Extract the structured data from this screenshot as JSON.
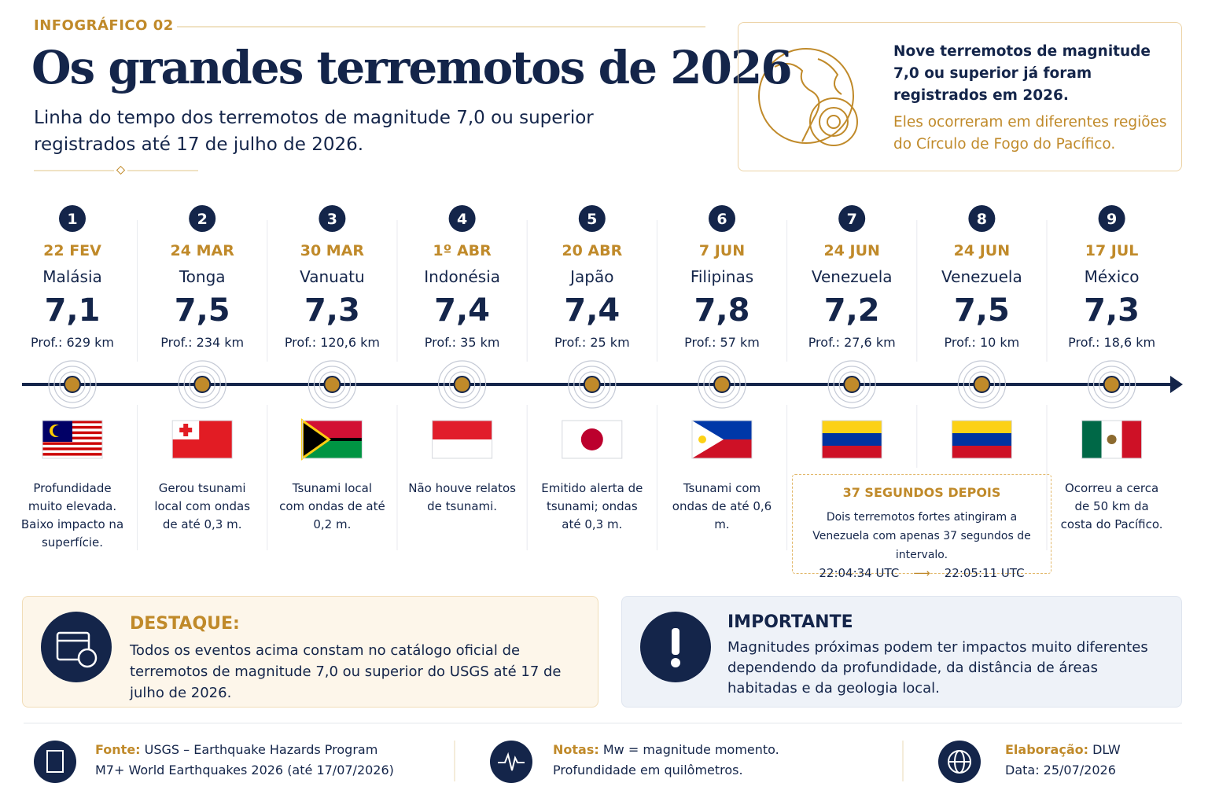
{
  "header": {
    "kicker": "INFOGRÁFICO 02",
    "title": "Os grandes terremotos de 2026",
    "subtitle": "Linha do tempo dos terremotos de magnitude 7,0 ou superior registrados até 17 de julho de 2026."
  },
  "intro": {
    "text": "Nove terremotos de magnitude 7,0 ou superior já foram registrados em 2026.",
    "note": "Eles ocorreram em diferentes regiões do Círculo de Fogo do Pacífico."
  },
  "events": [
    {
      "number": 1,
      "date": "22 FEV",
      "country": "Malásia",
      "magnitude": "7,1",
      "depth": "Prof.: 629 km",
      "note": "Profundidade muito elevada. Baixo impacto na superfície."
    },
    {
      "number": 2,
      "date": "24 MAR",
      "country": "Tonga",
      "magnitude": "7,5",
      "depth": "Prof.: 234 km",
      "note": "Gerou tsunami local com ondas de até 0,3 m."
    },
    {
      "number": 3,
      "date": "30 MAR",
      "country": "Vanuatu",
      "magnitude": "7,3",
      "depth": "Prof.: 120,6 km",
      "note": "Tsunami local com ondas de até 0,2 m."
    },
    {
      "number": 4,
      "date": "1º ABR",
      "country": "Indonésia",
      "magnitude": "7,4",
      "depth": "Prof.: 35 km",
      "note": "Não houve relatos de tsunami."
    },
    {
      "number": 5,
      "date": "20 ABR",
      "country": "Japão",
      "magnitude": "7,4",
      "depth": "Prof.: 25 km",
      "note": "Emitido alerta de tsunami; ondas até 0,3 m."
    },
    {
      "number": 6,
      "date": "7 JUN",
      "country": "Filipinas",
      "magnitude": "7,8",
      "depth": "Prof.: 57 km",
      "note": "Tsunami com ondas de até 0,6 m."
    },
    {
      "number": 7,
      "date": "24 JUN",
      "country": "Venezuela",
      "magnitude": "7,2",
      "depth": "Prof.: 27,6 km"
    },
    {
      "number": 8,
      "date": "24 JUN",
      "country": "Venezuela",
      "magnitude": "7,5",
      "depth": "Prof.: 10 km"
    },
    {
      "number": 9,
      "date": "17 JUL",
      "country": "México",
      "magnitude": "7,3",
      "depth": "Prof.: 18,6 km",
      "note": "Ocorreu a cerca de 50 km da costa do Pacífico."
    }
  ],
  "callout": {
    "title": "37 SEGUNDOS DEPOIS",
    "text": "Dois terremotos fortes atingiram a Venezuela com apenas 37 segundos de intervalo.",
    "time_from": "22:04:34 UTC",
    "time_to": "22:05:11 UTC"
  },
  "highlight": {
    "title": "DESTAQUE:",
    "text": "Todos os eventos acima constam no catálogo oficial de terremotos de magnitude 7,0 ou superior do USGS até 17 de julho de 2026."
  },
  "important": {
    "title": "IMPORTANTE",
    "text": "Magnitudes próximas podem ter impactos muito diferentes dependendo da profundidade, da distância de áreas habitadas e da geologia local."
  },
  "footer": {
    "source": {
      "label": "Fonte:",
      "line1": "USGS – Earthquake Hazards Program",
      "line2": "M7+ World Earthquakes 2026 (até 17/07/2026)"
    },
    "notes": {
      "label": "Notas:",
      "line1": "Mw = magnitude momento.",
      "line2": "Profundidade em quilômetros."
    },
    "credits": {
      "label": "Elaboração:",
      "line1": "DLW",
      "line2": "Data: 25/07/2026"
    }
  }
}
